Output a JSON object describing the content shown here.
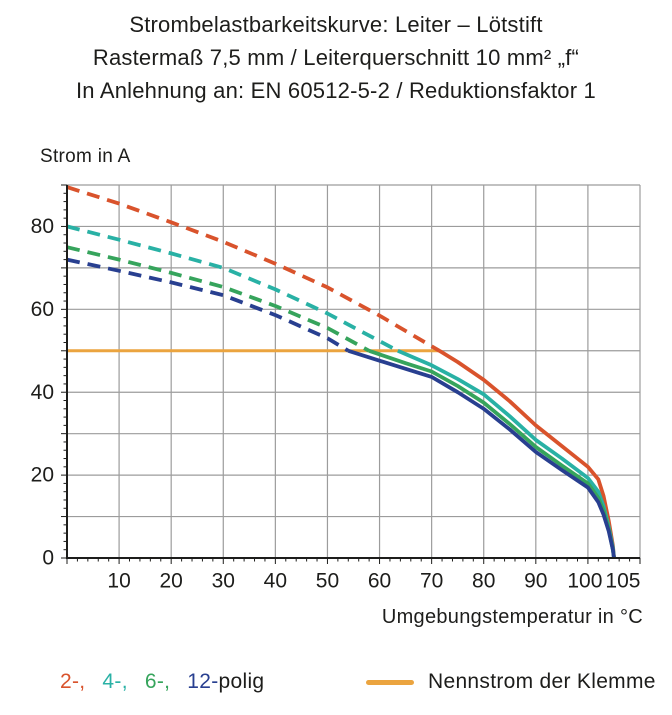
{
  "title": {
    "line1": "Strombelastbarkeitskurve: Leiter – Lötstift",
    "line2": "Rastermaß 7,5 mm / Leiterquerschnitt 10 mm² „f“",
    "line3": "In Anlehnung an: EN 60512-5-2 / Reduktionsfaktor 1"
  },
  "axes": {
    "y_label": "Strom in A",
    "x_label": "Umgebungstemperatur in °C"
  },
  "legend": {
    "poles": [
      {
        "label": "2-,",
        "color": "#d9532c"
      },
      {
        "label": "4-,",
        "color": "#29b1a5"
      },
      {
        "label": "6-,",
        "color": "#36a45c"
      },
      {
        "label": "12-",
        "color": "#283f90"
      }
    ],
    "poles_suffix": "polig",
    "nennstrom_label": "Nennstrom der Klemme",
    "nennstrom_color": "#eba43f"
  },
  "colors": {
    "grid": "#9c9c9c",
    "axis": "#1d1d1b",
    "text": "#1d1d1b"
  },
  "chart_data": {
    "type": "line",
    "title": "Strombelastbarkeitskurve: Leiter – Lötstift",
    "xlabel": "Umgebungstemperatur in °C",
    "ylabel": "Strom in A",
    "xlim": [
      0,
      110
    ],
    "ylim": [
      0,
      90
    ],
    "grid": true,
    "grid_step": 10,
    "minor_tick_step": 2,
    "x_ticks": [
      {
        "value": 10,
        "label": "10",
        "dx": 0
      },
      {
        "value": 20,
        "label": "20",
        "dx": 0
      },
      {
        "value": 30,
        "label": "30",
        "dx": 0
      },
      {
        "value": 40,
        "label": "40",
        "dx": 0
      },
      {
        "value": 50,
        "label": "50",
        "dx": 0
      },
      {
        "value": 60,
        "label": "60",
        "dx": 0
      },
      {
        "value": 70,
        "label": "70",
        "dx": 0
      },
      {
        "value": 80,
        "label": "80",
        "dx": 0
      },
      {
        "value": 90,
        "label": "90",
        "dx": 0
      },
      {
        "value": 100,
        "label": "100",
        "dx": -3
      },
      {
        "value": 105,
        "label": "105",
        "dx": 9
      }
    ],
    "y_ticks": [
      {
        "value": 0,
        "label": "0"
      },
      {
        "value": 20,
        "label": "20"
      },
      {
        "value": 40,
        "label": "40"
      },
      {
        "value": 60,
        "label": "60"
      },
      {
        "value": 80,
        "label": "80"
      }
    ],
    "series": [
      {
        "name": "nennstrom-der-klemme",
        "color": "#eba43f",
        "dashed": false,
        "width": 3,
        "points": [
          [
            0,
            50
          ],
          [
            71.5,
            50
          ]
        ]
      },
      {
        "name": "2-polig-dashed",
        "color": "#d9532c",
        "dashed": true,
        "width": 3.8,
        "points": [
          [
            0,
            89.5
          ],
          [
            10,
            85.5
          ],
          [
            20,
            81
          ],
          [
            30,
            76.3
          ],
          [
            40,
            71
          ],
          [
            50,
            65.3
          ],
          [
            60,
            58.5
          ],
          [
            71.5,
            50
          ]
        ]
      },
      {
        "name": "4-polig-dashed",
        "color": "#29b1a5",
        "dashed": true,
        "width": 3.8,
        "points": [
          [
            0,
            80
          ],
          [
            10,
            76.8
          ],
          [
            20,
            73.5
          ],
          [
            30,
            70
          ],
          [
            40,
            64.8
          ],
          [
            50,
            59
          ],
          [
            63.5,
            50
          ]
        ]
      },
      {
        "name": "6-polig-dashed",
        "color": "#36a45c",
        "dashed": true,
        "width": 3.8,
        "points": [
          [
            0,
            75
          ],
          [
            10,
            72
          ],
          [
            20,
            68.8
          ],
          [
            30,
            65.4
          ],
          [
            40,
            60.8
          ],
          [
            50,
            55.5
          ],
          [
            58,
            50
          ]
        ]
      },
      {
        "name": "12-polig-dashed",
        "color": "#283f90",
        "dashed": true,
        "width": 3.8,
        "points": [
          [
            0,
            72
          ],
          [
            10,
            69.3
          ],
          [
            20,
            66.5
          ],
          [
            30,
            63.4
          ],
          [
            40,
            58.6
          ],
          [
            50,
            53
          ],
          [
            54,
            50
          ]
        ]
      },
      {
        "name": "2-polig-solid",
        "color": "#d9532c",
        "dashed": false,
        "width": 3.8,
        "points": [
          [
            71.5,
            50
          ],
          [
            75,
            47.3
          ],
          [
            80,
            43
          ],
          [
            85,
            37.8
          ],
          [
            90,
            32
          ],
          [
            95,
            27
          ],
          [
            100,
            22
          ],
          [
            102,
            19
          ],
          [
            103,
            15
          ],
          [
            104,
            9
          ],
          [
            104.8,
            3
          ],
          [
            105,
            0
          ]
        ]
      },
      {
        "name": "4-polig-solid",
        "color": "#29b1a5",
        "dashed": false,
        "width": 3.8,
        "points": [
          [
            63.5,
            50
          ],
          [
            70,
            46.5
          ],
          [
            75,
            43.2
          ],
          [
            80,
            39.5
          ],
          [
            85,
            34.2
          ],
          [
            90,
            28.5
          ],
          [
            95,
            24
          ],
          [
            100,
            19.3
          ],
          [
            102,
            16
          ],
          [
            103,
            12.5
          ],
          [
            104,
            7.5
          ],
          [
            104.8,
            2.5
          ],
          [
            105,
            0
          ]
        ]
      },
      {
        "name": "6-polig-solid",
        "color": "#36a45c",
        "dashed": false,
        "width": 3.8,
        "points": [
          [
            58,
            50
          ],
          [
            65,
            47
          ],
          [
            70,
            45
          ],
          [
            75,
            41.5
          ],
          [
            80,
            37.5
          ],
          [
            85,
            32.3
          ],
          [
            90,
            26.8
          ],
          [
            95,
            22.3
          ],
          [
            100,
            18
          ],
          [
            102,
            14.5
          ],
          [
            103,
            11.5
          ],
          [
            104,
            7
          ],
          [
            104.8,
            2
          ],
          [
            105,
            0
          ]
        ]
      },
      {
        "name": "12-polig-solid",
        "color": "#283f90",
        "dashed": false,
        "width": 3.8,
        "points": [
          [
            54,
            50
          ],
          [
            60,
            47.6
          ],
          [
            70,
            43.7
          ],
          [
            75,
            40
          ],
          [
            80,
            36
          ],
          [
            85,
            31
          ],
          [
            90,
            25.6
          ],
          [
            95,
            21.2
          ],
          [
            100,
            17
          ],
          [
            102,
            13.5
          ],
          [
            103,
            10.5
          ],
          [
            104,
            6.5
          ],
          [
            104.8,
            2
          ],
          [
            105,
            0
          ]
        ]
      }
    ]
  }
}
